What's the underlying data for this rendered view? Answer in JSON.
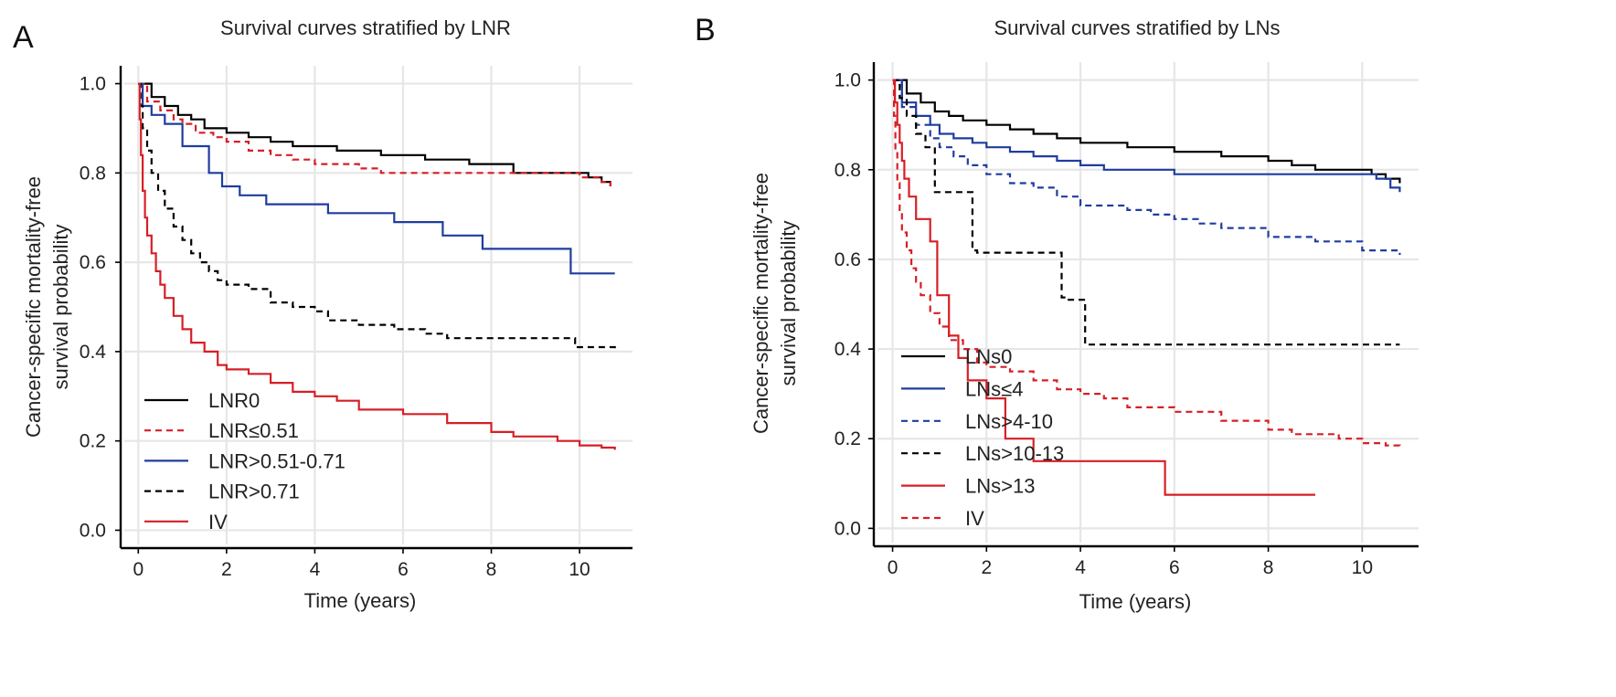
{
  "chart_data": [
    {
      "type": "line",
      "panel_letter": "A",
      "title": "Survival curves stratified by LNR",
      "xlabel": "Time (years)",
      "ylabel_lines": [
        "Cancer-specific mortality-free",
        "survival probability"
      ],
      "xlim": [
        -0.4,
        11.2
      ],
      "ylim": [
        -0.04,
        1.04
      ],
      "xticks": [
        0,
        2,
        4,
        6,
        8,
        10
      ],
      "yticks": [
        "0.0",
        "0.2",
        "0.4",
        "0.6",
        "0.8",
        "1.0"
      ],
      "grid": true,
      "legend_position": "bottom-left",
      "series": [
        {
          "name": "LNR0",
          "color": "#000000",
          "dash": "solid",
          "x": [
            0,
            0.3,
            0.6,
            0.9,
            1.2,
            1.5,
            2.0,
            2.5,
            3.0,
            3.5,
            4.0,
            4.5,
            5.0,
            5.5,
            6.0,
            6.5,
            7.0,
            7.5,
            8.0,
            8.5,
            9.0,
            9.5,
            10.0,
            10.2,
            10.4,
            10.5,
            10.7
          ],
          "y": [
            1.0,
            0.97,
            0.95,
            0.93,
            0.92,
            0.9,
            0.89,
            0.88,
            0.87,
            0.86,
            0.86,
            0.85,
            0.85,
            0.84,
            0.84,
            0.83,
            0.83,
            0.82,
            0.82,
            0.8,
            0.8,
            0.8,
            0.8,
            0.79,
            0.79,
            0.78,
            0.77
          ]
        },
        {
          "name": "LNR≤0.51",
          "color": "#d61f26",
          "dash": "dashed",
          "x": [
            0,
            0.2,
            0.5,
            0.8,
            1.0,
            1.3,
            1.7,
            2.0,
            2.5,
            3.0,
            3.5,
            4.0,
            4.5,
            5.0,
            5.5,
            6.0,
            7.0,
            8.0,
            9.0,
            10.0,
            10.5,
            10.7
          ],
          "y": [
            1.0,
            0.96,
            0.94,
            0.92,
            0.91,
            0.89,
            0.88,
            0.87,
            0.85,
            0.84,
            0.83,
            0.82,
            0.82,
            0.81,
            0.8,
            0.8,
            0.8,
            0.8,
            0.8,
            0.79,
            0.78,
            0.77
          ]
        },
        {
          "name": "LNR>0.51-0.71",
          "color": "#1f3d9e",
          "dash": "solid",
          "x": [
            0,
            0.1,
            0.3,
            0.6,
            1.0,
            1.6,
            1.9,
            2.3,
            2.9,
            3.5,
            4.3,
            5.0,
            5.8,
            6.9,
            7.8,
            9.8,
            10.8
          ],
          "y": [
            1.0,
            0.95,
            0.93,
            0.91,
            0.86,
            0.8,
            0.77,
            0.75,
            0.73,
            0.73,
            0.71,
            0.71,
            0.69,
            0.66,
            0.63,
            0.575,
            0.575
          ],
          "end_step": true
        },
        {
          "name": "LNR>0.71",
          "color": "#000000",
          "dash": "dashed",
          "x": [
            0,
            0.05,
            0.1,
            0.2,
            0.3,
            0.45,
            0.6,
            0.8,
            1.0,
            1.2,
            1.4,
            1.6,
            1.8,
            2.0,
            2.5,
            3.0,
            3.5,
            4.0,
            4.3,
            5.0,
            5.8,
            6.5,
            7.0,
            8.0,
            9.0,
            9.9,
            10.8
          ],
          "y": [
            1.0,
            0.95,
            0.9,
            0.85,
            0.8,
            0.76,
            0.72,
            0.68,
            0.65,
            0.62,
            0.6,
            0.58,
            0.56,
            0.55,
            0.54,
            0.51,
            0.5,
            0.49,
            0.47,
            0.46,
            0.45,
            0.44,
            0.43,
            0.43,
            0.43,
            0.41,
            0.4
          ],
          "end_step": true
        },
        {
          "name": "IV",
          "color": "#d61f26",
          "dash": "solid",
          "x": [
            0,
            0.03,
            0.06,
            0.1,
            0.15,
            0.2,
            0.3,
            0.4,
            0.5,
            0.6,
            0.8,
            1.0,
            1.2,
            1.5,
            1.8,
            2.0,
            2.5,
            3.0,
            3.5,
            4.0,
            4.5,
            5.0,
            6.0,
            7.0,
            8.0,
            8.5,
            9.0,
            9.5,
            10.0,
            10.5,
            10.8
          ],
          "y": [
            1.0,
            0.92,
            0.84,
            0.76,
            0.7,
            0.66,
            0.62,
            0.58,
            0.55,
            0.52,
            0.48,
            0.45,
            0.42,
            0.4,
            0.37,
            0.36,
            0.35,
            0.33,
            0.31,
            0.3,
            0.29,
            0.27,
            0.26,
            0.24,
            0.22,
            0.21,
            0.21,
            0.2,
            0.19,
            0.185,
            0.18
          ]
        }
      ]
    },
    {
      "type": "line",
      "panel_letter": "B",
      "title": "Survival curves stratified by LNs",
      "xlabel": "Time (years)",
      "ylabel_lines": [
        "Cancer-specific mortality-free",
        "survival probability"
      ],
      "xlim": [
        -0.4,
        11.2
      ],
      "ylim": [
        -0.04,
        1.04
      ],
      "xticks": [
        0,
        2,
        4,
        6,
        8,
        10
      ],
      "yticks": [
        "0.0",
        "0.2",
        "0.4",
        "0.6",
        "0.8",
        "1.0"
      ],
      "grid": true,
      "legend_position": "bottom-left",
      "series": [
        {
          "name": "LNs0",
          "color": "#000000",
          "dash": "solid",
          "x": [
            0,
            0.3,
            0.6,
            0.9,
            1.2,
            1.5,
            2.0,
            2.5,
            3.0,
            3.5,
            4.0,
            4.5,
            5.0,
            6.0,
            7.0,
            7.5,
            8.0,
            8.5,
            9.0,
            10.0,
            10.2,
            10.5,
            10.8
          ],
          "y": [
            1.0,
            0.97,
            0.95,
            0.93,
            0.92,
            0.91,
            0.9,
            0.89,
            0.88,
            0.87,
            0.86,
            0.86,
            0.85,
            0.84,
            0.83,
            0.83,
            0.82,
            0.81,
            0.8,
            0.8,
            0.79,
            0.78,
            0.77
          ]
        },
        {
          "name": "LNs≤4",
          "color": "#1f3d9e",
          "dash": "solid",
          "x": [
            0,
            0.2,
            0.5,
            0.8,
            1.0,
            1.3,
            1.7,
            2.0,
            2.5,
            3.0,
            3.5,
            4.0,
            4.5,
            5.0,
            6.0,
            7.0,
            8.0,
            9.0,
            10.0,
            10.3,
            10.6,
            10.8
          ],
          "y": [
            1.0,
            0.95,
            0.92,
            0.9,
            0.88,
            0.87,
            0.86,
            0.85,
            0.84,
            0.83,
            0.82,
            0.81,
            0.8,
            0.8,
            0.79,
            0.79,
            0.79,
            0.79,
            0.79,
            0.78,
            0.76,
            0.75
          ]
        },
        {
          "name": "LNs>4-10",
          "color": "#1f3d9e",
          "dash": "dashed",
          "x": [
            0,
            0.2,
            0.5,
            0.8,
            1.0,
            1.3,
            1.6,
            2.0,
            2.5,
            3.0,
            3.5,
            4.0,
            4.5,
            5.0,
            5.5,
            6.0,
            6.5,
            7.0,
            8.0,
            9.0,
            9.7,
            10.0,
            10.8
          ],
          "y": [
            1.0,
            0.94,
            0.9,
            0.87,
            0.85,
            0.83,
            0.81,
            0.79,
            0.77,
            0.76,
            0.74,
            0.72,
            0.72,
            0.71,
            0.7,
            0.69,
            0.68,
            0.67,
            0.65,
            0.64,
            0.64,
            0.62,
            0.61
          ]
        },
        {
          "name": "LNs>10-13",
          "color": "#000000",
          "dash": "dashed",
          "x": [
            0,
            0.15,
            0.3,
            0.5,
            0.7,
            0.9,
            1.7,
            1.8,
            3.6,
            3.7,
            4.1,
            10.8
          ],
          "y": [
            1.0,
            0.96,
            0.92,
            0.88,
            0.85,
            0.75,
            0.62,
            0.615,
            0.515,
            0.51,
            0.41,
            0.41
          ],
          "end_step": true
        },
        {
          "name": "LNs>13",
          "color": "#d61f26",
          "dash": "solid",
          "x": [
            0,
            0.05,
            0.1,
            0.15,
            0.2,
            0.25,
            0.35,
            0.5,
            0.6,
            0.8,
            0.95,
            1.2,
            1.4,
            1.6,
            1.8,
            2.0,
            2.4,
            3.0,
            5.8,
            9.0
          ],
          "y": [
            1.0,
            0.95,
            0.9,
            0.86,
            0.82,
            0.78,
            0.74,
            0.69,
            0.69,
            0.64,
            0.52,
            0.43,
            0.38,
            0.33,
            0.33,
            0.29,
            0.2,
            0.15,
            0.075,
            0.075
          ],
          "end_step": true
        },
        {
          "name": "IV",
          "color": "#d61f26",
          "dash": "dashed",
          "x": [
            0,
            0.03,
            0.06,
            0.1,
            0.15,
            0.2,
            0.3,
            0.4,
            0.5,
            0.6,
            0.8,
            1.0,
            1.2,
            1.5,
            1.8,
            2.0,
            2.5,
            3.0,
            3.5,
            4.0,
            4.5,
            5.0,
            6.0,
            7.0,
            8.0,
            8.5,
            9.0,
            9.5,
            10.0,
            10.5,
            10.8
          ],
          "y": [
            1.0,
            0.92,
            0.84,
            0.77,
            0.71,
            0.66,
            0.62,
            0.58,
            0.55,
            0.52,
            0.48,
            0.45,
            0.42,
            0.4,
            0.37,
            0.36,
            0.35,
            0.33,
            0.31,
            0.3,
            0.29,
            0.27,
            0.26,
            0.24,
            0.22,
            0.21,
            0.21,
            0.2,
            0.19,
            0.185,
            0.18
          ]
        }
      ]
    }
  ]
}
